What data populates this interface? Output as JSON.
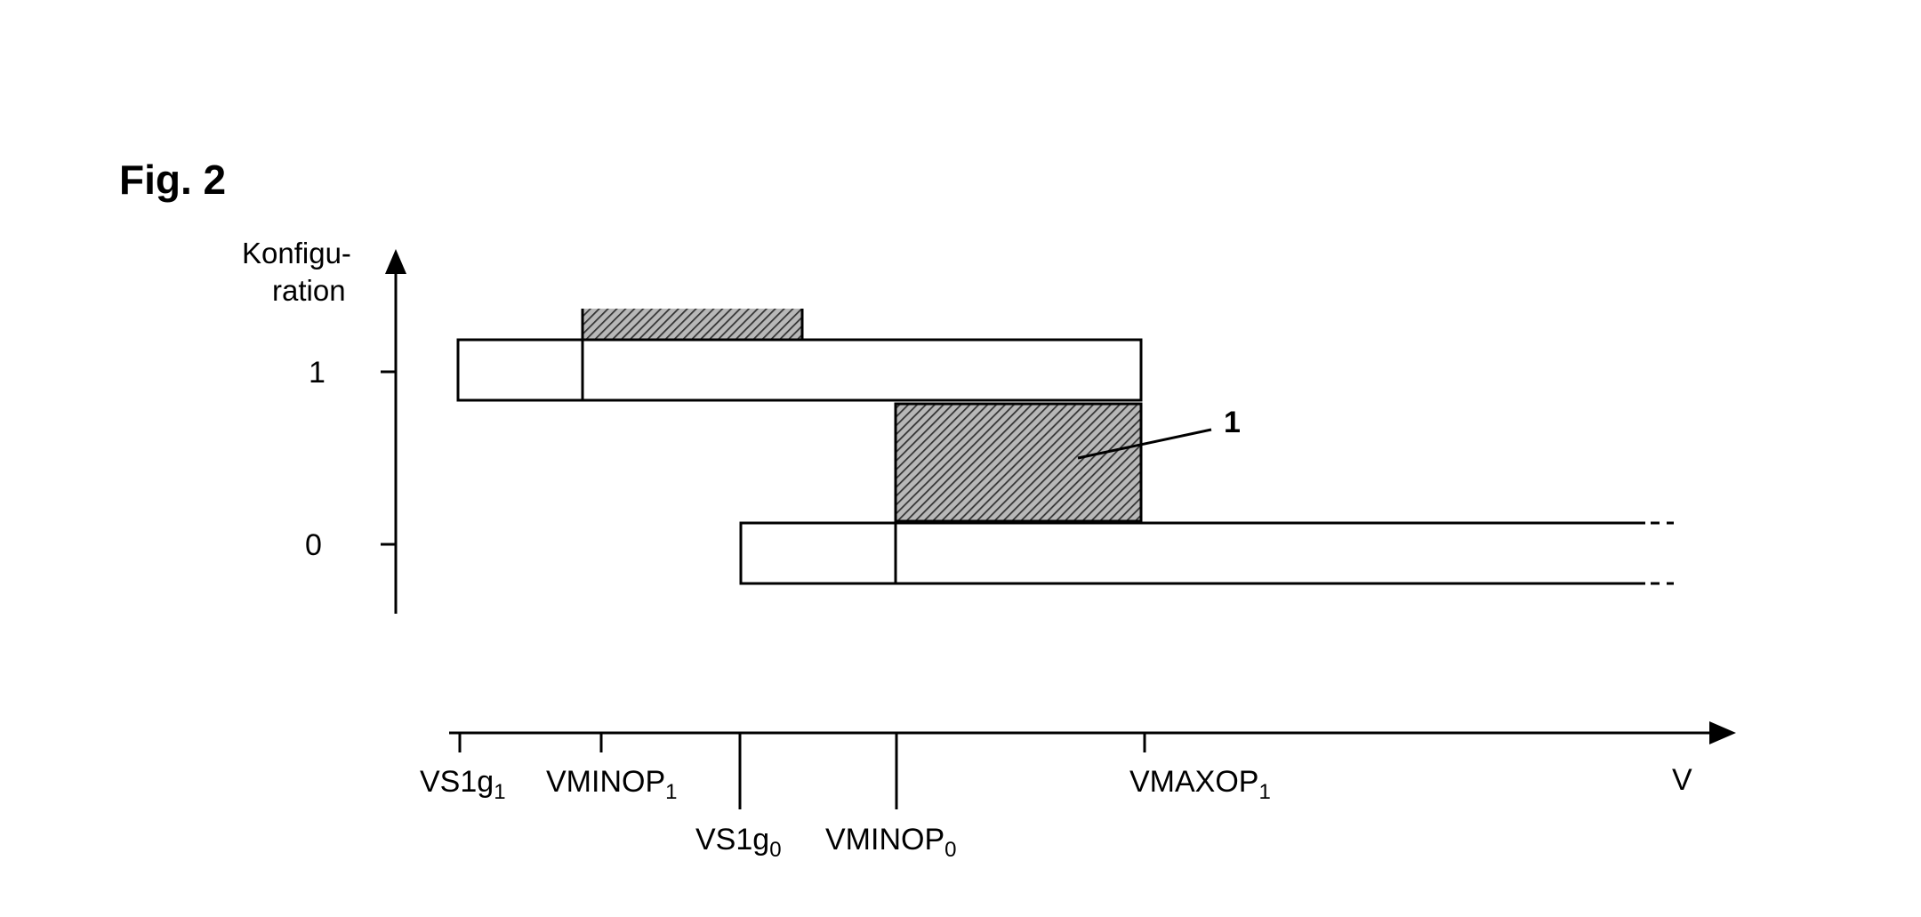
{
  "figure": {
    "title": "Fig. 2",
    "y_axis": {
      "title_line1": "Konfigu-",
      "title_line2": "ration",
      "ticks": [
        "1",
        "0"
      ]
    },
    "x_axis": {
      "label": "V",
      "speed_marks": [
        {
          "base": "VS1g",
          "sub": "1"
        },
        {
          "base": "VMINOP",
          "sub": "1"
        },
        {
          "base": "VS1g",
          "sub": "0"
        },
        {
          "base": "VMINOP",
          "sub": "0"
        },
        {
          "base": "VMAXOP",
          "sub": "1"
        }
      ]
    },
    "callout": "1"
  },
  "colors": {
    "ink": "#000000",
    "paper": "#ffffff",
    "hatch_bg": "#b8b8b8",
    "hatch_line": "#333333"
  }
}
